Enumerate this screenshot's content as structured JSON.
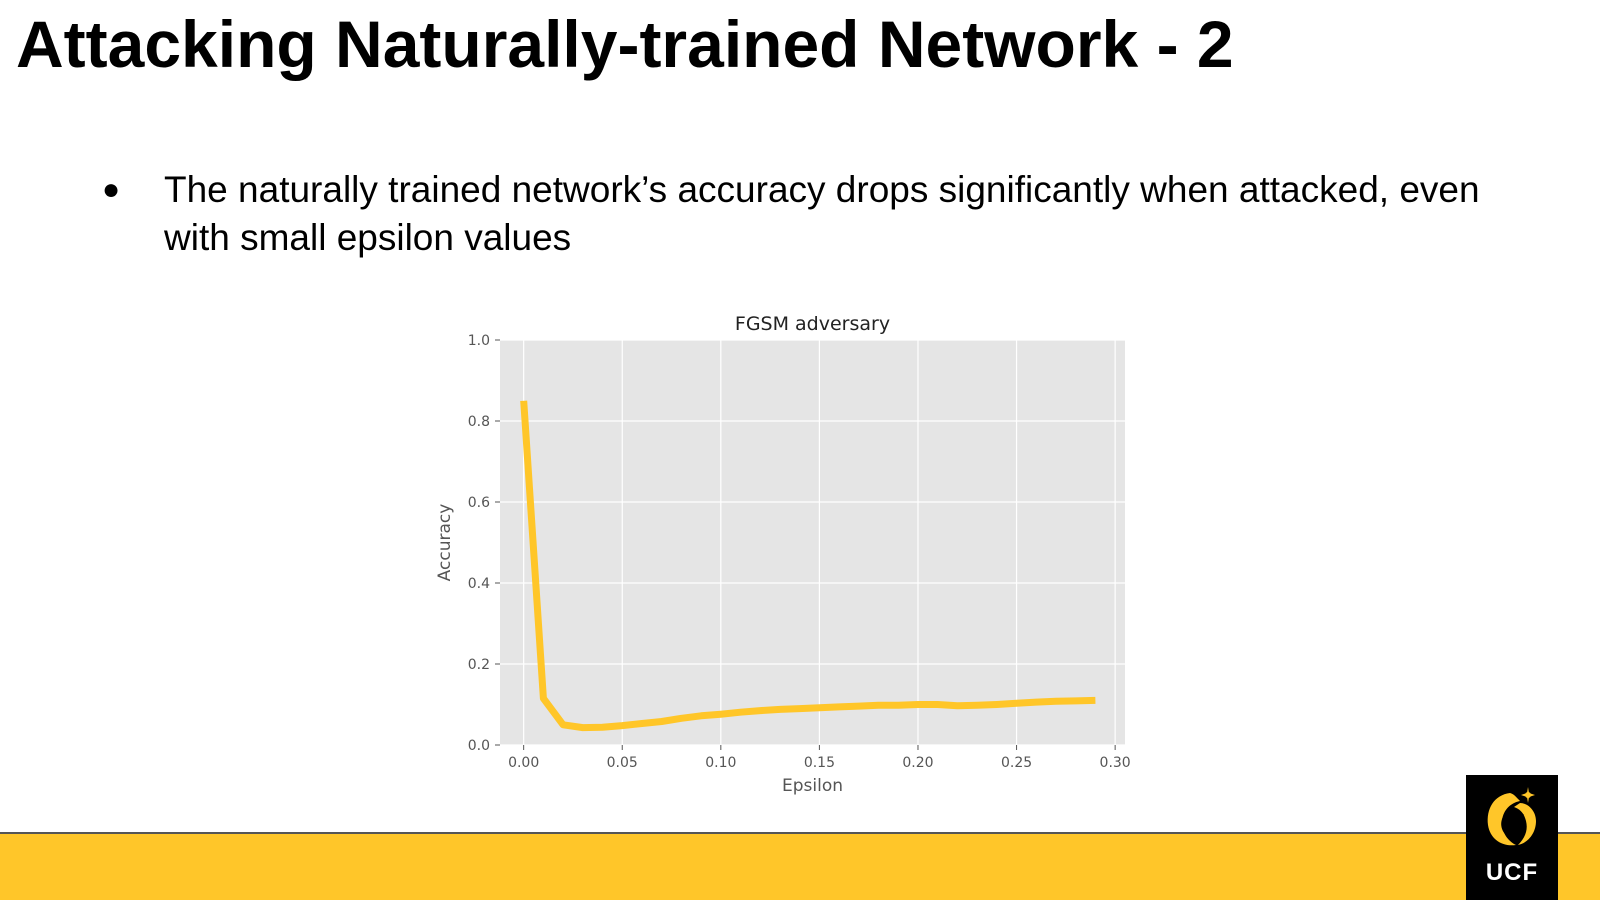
{
  "slide": {
    "title": "Attacking Naturally-trained Network - 2",
    "bullet_symbol": "●",
    "bullets": [
      "The naturally trained network’s accuracy drops significantly when attacked, even with small epsilon values"
    ]
  },
  "logo": {
    "text": "UCF",
    "icon": "pegasus-icon"
  },
  "colors": {
    "accent": "#FFC629",
    "line": "#FFC629",
    "plot_bg": "#E5E5E5",
    "grid": "#FFFFFF"
  },
  "chart_data": {
    "type": "line",
    "title": "FGSM adversary",
    "xlabel": "Epsilon",
    "ylabel": "Accuracy",
    "xlim": [
      -0.012,
      0.305
    ],
    "ylim": [
      0.0,
      1.0
    ],
    "xticks": [
      0.0,
      0.05,
      0.1,
      0.15,
      0.2,
      0.25,
      0.3
    ],
    "xtick_labels": [
      "0.00",
      "0.05",
      "0.10",
      "0.15",
      "0.20",
      "0.25",
      "0.30"
    ],
    "yticks": [
      0.0,
      0.2,
      0.4,
      0.6,
      0.8,
      1.0
    ],
    "ytick_labels": [
      "0.0",
      "0.2",
      "0.4",
      "0.6",
      "0.8",
      "1.0"
    ],
    "grid": true,
    "series": [
      {
        "x": [
          0.0,
          0.01,
          0.02,
          0.03,
          0.04,
          0.05,
          0.06,
          0.07,
          0.08,
          0.09,
          0.1,
          0.11,
          0.12,
          0.13,
          0.14,
          0.15,
          0.16,
          0.17,
          0.18,
          0.19,
          0.2,
          0.21,
          0.22,
          0.23,
          0.24,
          0.25,
          0.26,
          0.27,
          0.28,
          0.29
        ],
        "values": [
          0.85,
          0.115,
          0.05,
          0.043,
          0.044,
          0.048,
          0.053,
          0.058,
          0.066,
          0.072,
          0.076,
          0.081,
          0.085,
          0.088,
          0.09,
          0.092,
          0.094,
          0.096,
          0.098,
          0.098,
          0.1,
          0.1,
          0.097,
          0.098,
          0.1,
          0.103,
          0.106,
          0.108,
          0.109,
          0.11
        ]
      }
    ]
  }
}
